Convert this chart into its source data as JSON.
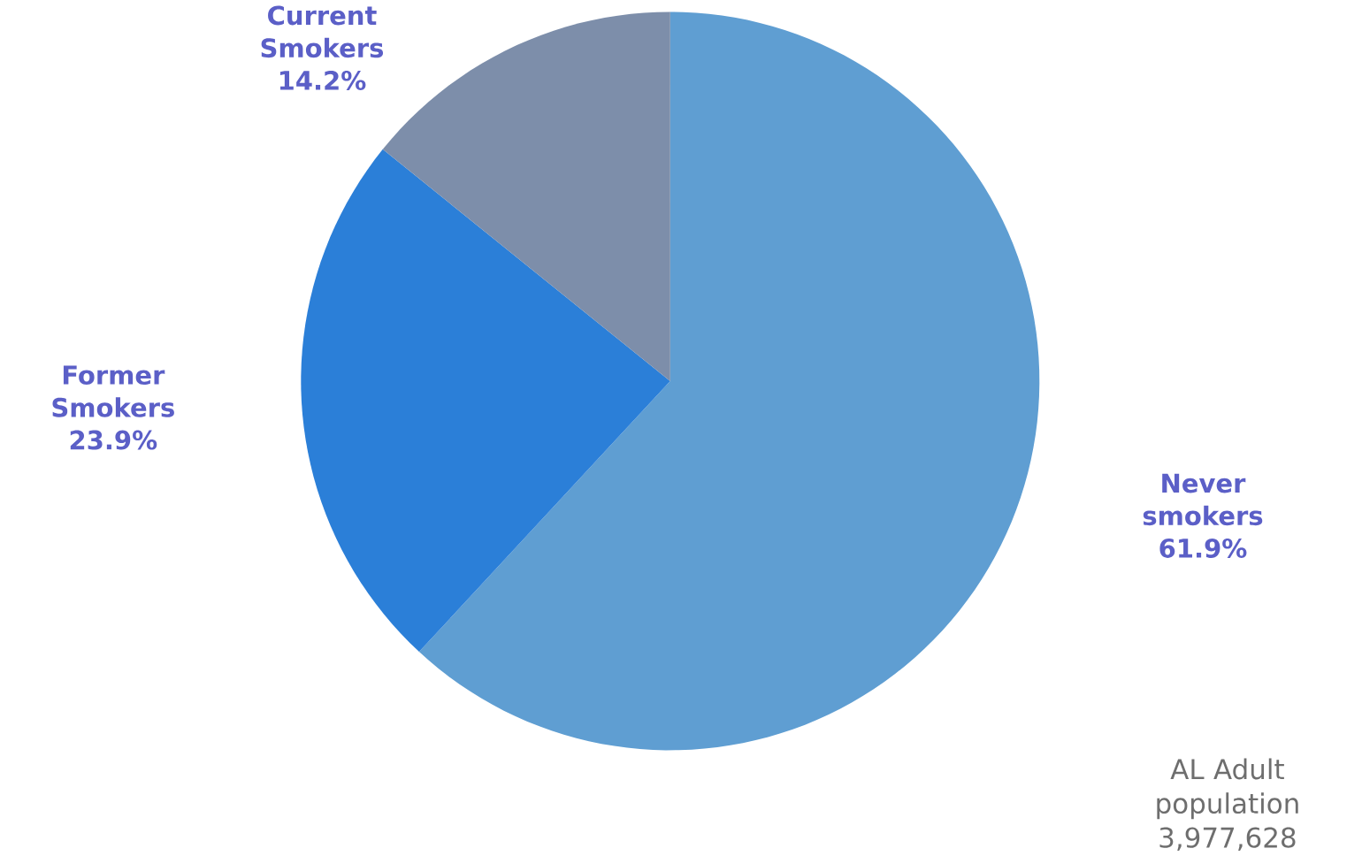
{
  "chart_data": {
    "type": "pie",
    "categories": [
      "Never smokers",
      "Former Smokers",
      "Current Smokers"
    ],
    "values": [
      61.9,
      23.9,
      14.2
    ],
    "value_labels": [
      "61.9%",
      "23.9%",
      "14.2%"
    ],
    "colors": [
      "#5f9ed2",
      "#2b7fd8",
      "#7d8eaa"
    ],
    "annotations": [
      "AL  Adult population 3,977,628"
    ]
  }
}
